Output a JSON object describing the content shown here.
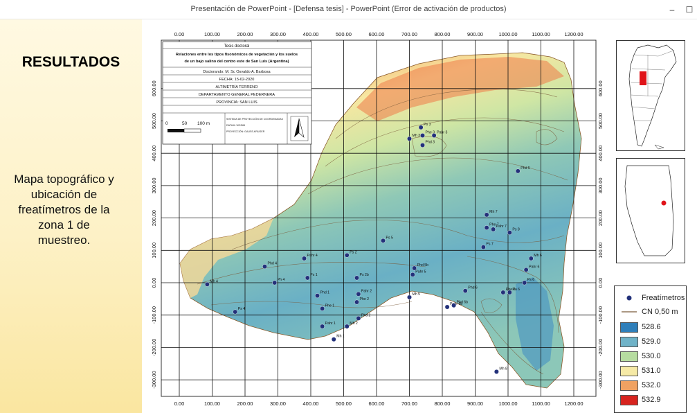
{
  "window": {
    "title": "Presentación de PowerPoint - [Defensa tesis] - PowerPoint (Error de activación de productos)",
    "minimize_glyph": "–",
    "maximize_glyph": "☐"
  },
  "slide": {
    "heading": "RESULTADOS",
    "caption": "Mapa topográfico y ubicación de freatímetros de la zona 1 de muestreo."
  },
  "titleblock": {
    "line1": "Tesis doctoral",
    "line2": "Relaciones entre los tipos fisonómicos de vegetación y los suelos",
    "line3": "de un bajo salino del centro este de San Luis (Argentina)",
    "line4": "Doctorando: M. Sc Osvaldo A. Barbosa",
    "line5": "FECHA: 15-02-2020",
    "line6": "ALTIMETRÍA TERRENO",
    "line7": "DEPARTAMENTO GENERAL PEDERNERA",
    "line8": "PROVINCIA: SAN LUIS",
    "scale_0": "0",
    "scale_50": "50",
    "scale_100": "100 m",
    "proj1": "SISTEMA DE PROYECCIÓN DE COORDENADAS",
    "proj2": "DATUM: WGS84",
    "proj3": "PROYECCIÓN: GAUSS-KRUGER"
  },
  "axes": {
    "x_ticks": [
      "0.00",
      "100.00",
      "200.00",
      "300.00",
      "400.00",
      "500.00",
      "600.00",
      "700.00",
      "800.00",
      "900.00",
      "1000.00",
      "1100.00",
      "1200.00"
    ],
    "y_ticks": [
      "600.00",
      "500.00",
      "400.00",
      "300.00",
      "200.00",
      "100.00",
      "0.00",
      "-100.00",
      "-200.00",
      "-300.00"
    ]
  },
  "piezometers": [
    {
      "label": "Ps 3",
      "x": 735,
      "y": 480
    },
    {
      "label": "Phe 3",
      "x": 740,
      "y": 455
    },
    {
      "label": "Pahr 3",
      "x": 775,
      "y": 455
    },
    {
      "label": "Mh 3",
      "x": 700,
      "y": 445
    },
    {
      "label": "Phd 3",
      "x": 740,
      "y": 425
    },
    {
      "label": "Phd 5",
      "x": 1030,
      "y": 345
    },
    {
      "label": "Mh 7",
      "x": 935,
      "y": 210
    },
    {
      "label": "Phe 7",
      "x": 935,
      "y": 170
    },
    {
      "label": "Pahr 7",
      "x": 955,
      "y": 165
    },
    {
      "label": "Ps 8",
      "x": 1005,
      "y": 155
    },
    {
      "label": "Ps 7",
      "x": 925,
      "y": 110
    },
    {
      "label": "Mh 6",
      "x": 1070,
      "y": 75
    },
    {
      "label": "Pahr 6",
      "x": 1055,
      "y": 40
    },
    {
      "label": "Ps 6",
      "x": 1050,
      "y": 0
    },
    {
      "label": "Phd 6",
      "x": 870,
      "y": -25
    },
    {
      "label": "Pa 6",
      "x": 1005,
      "y": -30
    },
    {
      "label": "Phe 6",
      "x": 985,
      "y": -30
    },
    {
      "label": "Pahr 6b",
      "x": 815,
      "y": -75
    },
    {
      "label": "Phd 6b",
      "x": 835,
      "y": -70
    },
    {
      "label": "Mh 8",
      "x": 965,
      "y": -275
    },
    {
      "label": "Ps 5",
      "x": 620,
      "y": 130
    },
    {
      "label": "Phd 5b",
      "x": 715,
      "y": 45
    },
    {
      "label": "Pahr 5",
      "x": 710,
      "y": 25
    },
    {
      "label": "Mh 5",
      "x": 700,
      "y": -45
    },
    {
      "label": "Ps 2",
      "x": 510,
      "y": 85
    },
    {
      "label": "Ps 2b",
      "x": 540,
      "y": 15
    },
    {
      "label": "Pahr 2",
      "x": 545,
      "y": -35
    },
    {
      "label": "Phe 2",
      "x": 540,
      "y": -60
    },
    {
      "label": "Phd 2",
      "x": 545,
      "y": -110
    },
    {
      "label": "Mh 2",
      "x": 510,
      "y": -135
    },
    {
      "label": "Pahr 4",
      "x": 380,
      "y": 75
    },
    {
      "label": "Phd 4",
      "x": 260,
      "y": 50
    },
    {
      "label": "Ps 1",
      "x": 390,
      "y": 15
    },
    {
      "label": "Ph 4",
      "x": 290,
      "y": 0
    },
    {
      "label": "Phd 1",
      "x": 420,
      "y": -40
    },
    {
      "label": "Phe 1",
      "x": 435,
      "y": -80
    },
    {
      "label": "Pahr 1",
      "x": 435,
      "y": -135
    },
    {
      "label": "Mh 1",
      "x": 470,
      "y": -175
    },
    {
      "label": "Mh 4",
      "x": 85,
      "y": -5
    },
    {
      "label": "Ps 4",
      "x": 170,
      "y": -90
    }
  ],
  "legend": {
    "piezometer_label": "Freatímetros",
    "contour_label": "CN 0,50 m",
    "classes": [
      {
        "label": "528.6",
        "color": "#2f7fba"
      },
      {
        "label": "529.0",
        "color": "#6fb3c8"
      },
      {
        "label": "530.0",
        "color": "#b6dca0"
      },
      {
        "label": "531.0",
        "color": "#f6eaa6"
      },
      {
        "label": "532.0",
        "color": "#f0a262"
      },
      {
        "label": "532.9",
        "color": "#d7241f"
      }
    ],
    "dot_color": "#23317a",
    "contour_color": "#7a5a3a"
  }
}
